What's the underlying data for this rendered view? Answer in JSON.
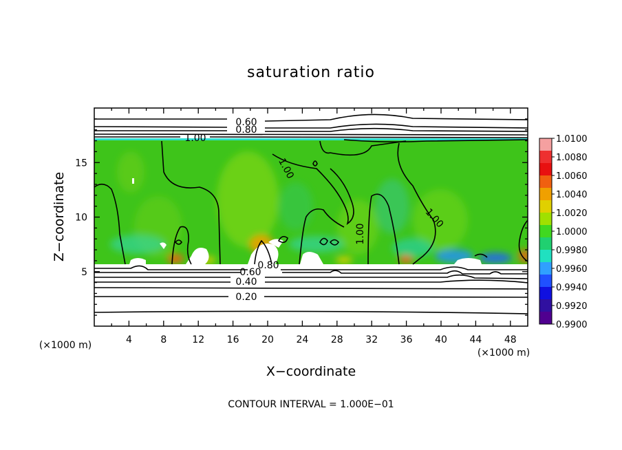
{
  "chart_data": {
    "type": "heatmap",
    "title": "saturation ratio",
    "xlabel": "X−coordinate",
    "ylabel": "Z−coordinate",
    "x_unit_left": "(×1000 m)",
    "x_unit_right": "(×1000 m)",
    "footer": "CONTOUR INTERVAL = 1.000E−01",
    "xlim": [
      0,
      50
    ],
    "ylim": [
      0,
      20
    ],
    "x_ticks": [
      "4",
      "8",
      "12",
      "16",
      "20",
      "24",
      "28",
      "32",
      "36",
      "40",
      "44",
      "48"
    ],
    "y_ticks": [
      "5",
      "10",
      "15"
    ],
    "colorbar": {
      "labels": [
        "1.0100",
        "1.0080",
        "1.0060",
        "1.0040",
        "1.0020",
        "1.0000",
        "0.9980",
        "0.9960",
        "0.9940",
        "0.9920",
        "0.9900"
      ],
      "colors": [
        "#f5a0a0",
        "#ee3030",
        "#e81010",
        "#f06010",
        "#f0a000",
        "#e0d000",
        "#a0e000",
        "#40d820",
        "#20d070",
        "#20e0c0",
        "#30a0ff",
        "#2050ff",
        "#1010e0",
        "#3010a0",
        "#500090"
      ]
    },
    "field": {
      "saturated_layer_z": [
        5.6,
        17.2
      ],
      "dominant_value": 1.0
    },
    "contour_labels": [
      {
        "text": "0.60",
        "x": 19.0,
        "z": 18.6
      },
      {
        "text": "0.80",
        "x": 19.0,
        "z": 17.8
      },
      {
        "text": "1.00",
        "x": 11.0,
        "z": 17.1
      },
      {
        "text": "1.00",
        "x": 21.5,
        "z": 14.2
      },
      {
        "text": "1.00",
        "x": 30.5,
        "z": 8.5
      },
      {
        "text": "1.00",
        "x": 38.5,
        "z": 9.7
      },
      {
        "text": "0.80",
        "x": 20.0,
        "z": 5.5
      },
      {
        "text": "0.60",
        "x": 18.0,
        "z": 4.8
      },
      {
        "text": "0.40",
        "x": 17.5,
        "z": 4.1
      },
      {
        "text": "0.20",
        "x": 17.5,
        "z": 2.6
      }
    ]
  }
}
